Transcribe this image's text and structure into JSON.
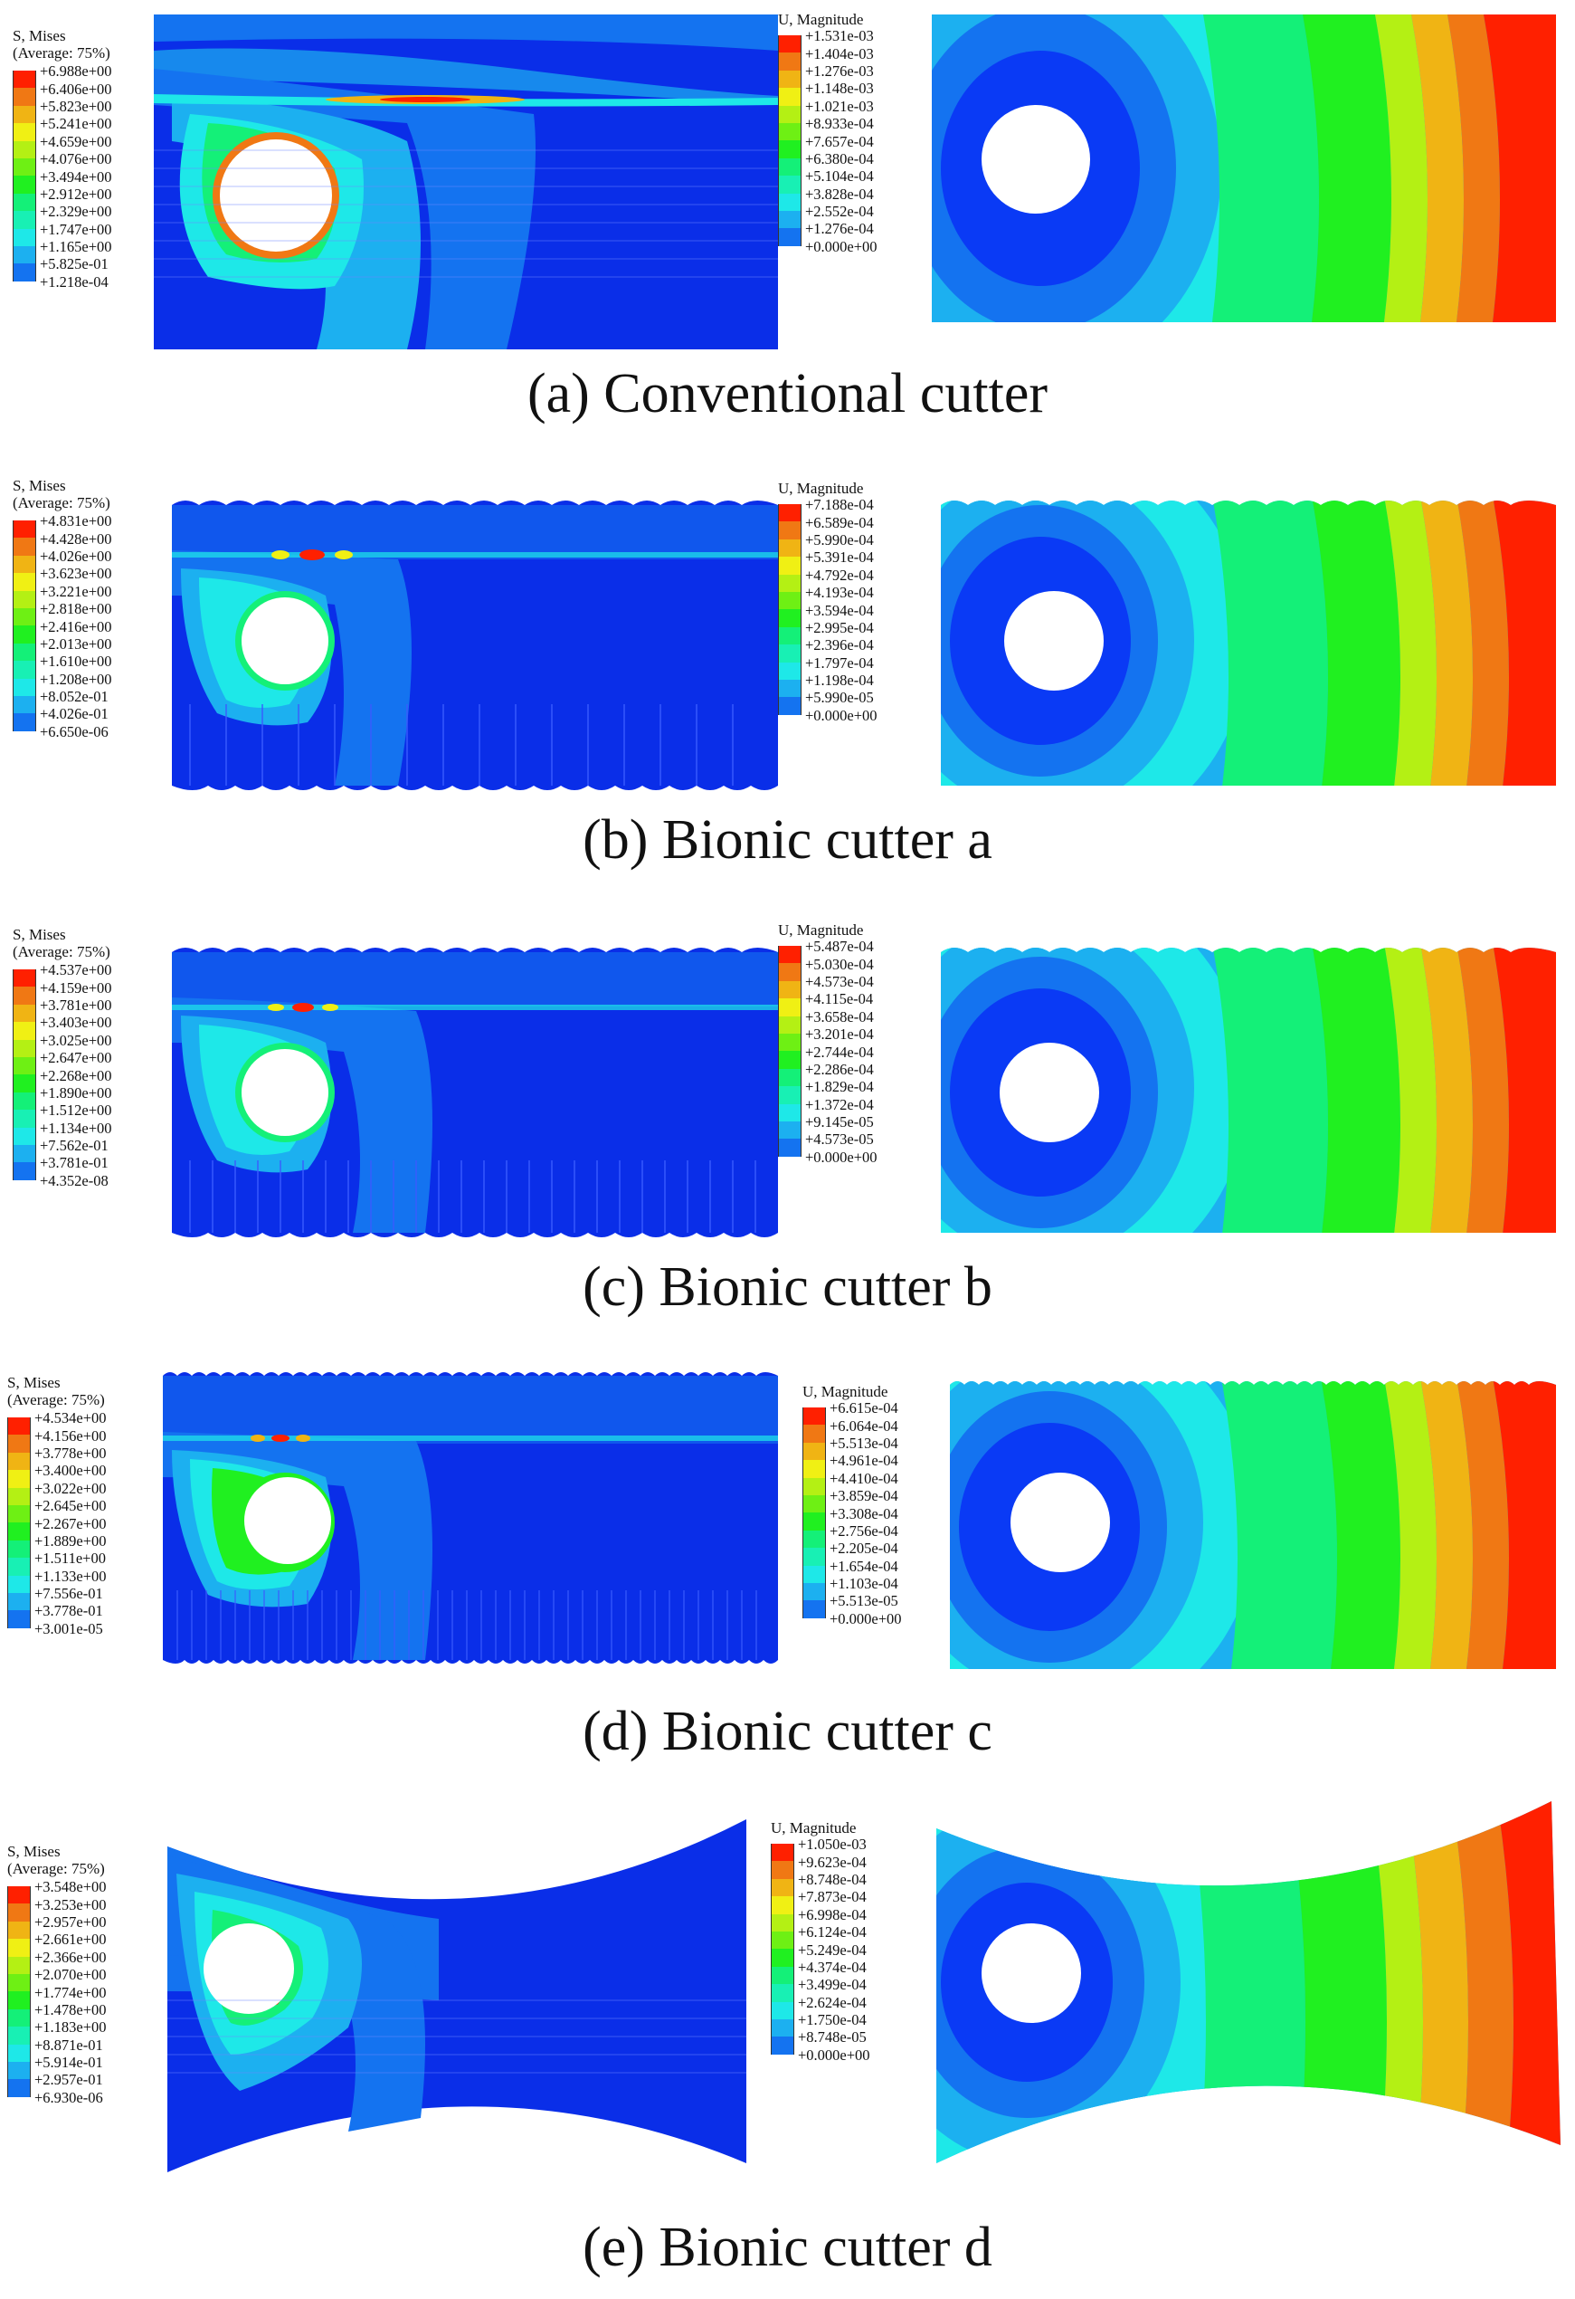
{
  "stress_palette": [
    "#0000ff",
    "#0a3af5",
    "#1473f0",
    "#1cb0f0",
    "#1ee8e8",
    "#18f0b4",
    "#14f078",
    "#20f020",
    "#6ef014",
    "#b4f014",
    "#f0f014",
    "#f0b414",
    "#f07814",
    "#ff2000"
  ],
  "disp_palette": [
    "#0000ff",
    "#0a3af5",
    "#1473f0",
    "#1cb0f0",
    "#1ee8e8",
    "#18f0b4",
    "#14f078",
    "#20f020",
    "#6ef014",
    "#b4f014",
    "#f0f014",
    "#f0b414",
    "#f07814",
    "#ff2000"
  ],
  "panels": [
    {
      "caption": "(a)  Conventional cutter",
      "stress": {
        "title1": "S, Mises",
        "title2": "(Average: 75%)",
        "values": [
          "+6.988e+00",
          "+6.406e+00",
          "+5.823e+00",
          "+5.241e+00",
          "+4.659e+00",
          "+4.076e+00",
          "+3.494e+00",
          "+2.912e+00",
          "+2.329e+00",
          "+1.747e+00",
          "+1.165e+00",
          "+5.825e-01",
          "+1.218e-04"
        ]
      },
      "disp": {
        "title1": "U, Magnitude",
        "values": [
          "+1.531e-03",
          "+1.404e-03",
          "+1.276e-03",
          "+1.148e-03",
          "+1.021e-03",
          "+8.933e-04",
          "+7.657e-04",
          "+6.380e-04",
          "+5.104e-04",
          "+3.828e-04",
          "+2.552e-04",
          "+1.276e-04",
          "+0.000e+00"
        ]
      }
    },
    {
      "caption": "(b)  Bionic cutter a",
      "stress": {
        "title1": "S, Mises",
        "title2": "(Average: 75%)",
        "values": [
          "+4.831e+00",
          "+4.428e+00",
          "+4.026e+00",
          "+3.623e+00",
          "+3.221e+00",
          "+2.818e+00",
          "+2.416e+00",
          "+2.013e+00",
          "+1.610e+00",
          "+1.208e+00",
          "+8.052e-01",
          "+4.026e-01",
          "+6.650e-06"
        ]
      },
      "disp": {
        "title1": "U, Magnitude",
        "values": [
          "+7.188e-04",
          "+6.589e-04",
          "+5.990e-04",
          "+5.391e-04",
          "+4.792e-04",
          "+4.193e-04",
          "+3.594e-04",
          "+2.995e-04",
          "+2.396e-04",
          "+1.797e-04",
          "+1.198e-04",
          "+5.990e-05",
          "+0.000e+00"
        ]
      }
    },
    {
      "caption": "(c)  Bionic cutter b",
      "stress": {
        "title1": "S, Mises",
        "title2": "(Average: 75%)",
        "values": [
          "+4.537e+00",
          "+4.159e+00",
          "+3.781e+00",
          "+3.403e+00",
          "+3.025e+00",
          "+2.647e+00",
          "+2.268e+00",
          "+1.890e+00",
          "+1.512e+00",
          "+1.134e+00",
          "+7.562e-01",
          "+3.781e-01",
          "+4.352e-08"
        ]
      },
      "disp": {
        "title1": "U, Magnitude",
        "values": [
          "+5.487e-04",
          "+5.030e-04",
          "+4.573e-04",
          "+4.115e-04",
          "+3.658e-04",
          "+3.201e-04",
          "+2.744e-04",
          "+2.286e-04",
          "+1.829e-04",
          "+1.372e-04",
          "+9.145e-05",
          "+4.573e-05",
          "+0.000e+00"
        ]
      }
    },
    {
      "caption": "(d)  Bionic cutter c",
      "stress": {
        "title1": "S, Mises",
        "title2": "(Average: 75%)",
        "values": [
          "+4.534e+00",
          "+4.156e+00",
          "+3.778e+00",
          "+3.400e+00",
          "+3.022e+00",
          "+2.645e+00",
          "+2.267e+00",
          "+1.889e+00",
          "+1.511e+00",
          "+1.133e+00",
          "+7.556e-01",
          "+3.778e-01",
          "+3.001e-05"
        ]
      },
      "disp": {
        "title1": "U, Magnitude",
        "values": [
          "+6.615e-04",
          "+6.064e-04",
          "+5.513e-04",
          "+4.961e-04",
          "+4.410e-04",
          "+3.859e-04",
          "+3.308e-04",
          "+2.756e-04",
          "+2.205e-04",
          "+1.654e-04",
          "+1.103e-04",
          "+5.513e-05",
          "+0.000e+00"
        ]
      }
    },
    {
      "caption": "(e)  Bionic cutter d",
      "stress": {
        "title1": "S, Mises",
        "title2": "(Average: 75%)",
        "values": [
          "+3.548e+00",
          "+3.253e+00",
          "+2.957e+00",
          "+2.661e+00",
          "+2.366e+00",
          "+2.070e+00",
          "+1.774e+00",
          "+1.478e+00",
          "+1.183e+00",
          "+8.871e-01",
          "+5.914e-01",
          "+2.957e-01",
          "+6.930e-06"
        ]
      },
      "disp": {
        "title1": "U, Magnitude",
        "values": [
          "+1.050e-03",
          "+9.623e-04",
          "+8.748e-04",
          "+7.873e-04",
          "+6.998e-04",
          "+6.124e-04",
          "+5.249e-04",
          "+4.374e-04",
          "+3.499e-04",
          "+2.624e-04",
          "+1.750e-04",
          "+8.748e-05",
          "+0.000e+00"
        ]
      }
    }
  ]
}
